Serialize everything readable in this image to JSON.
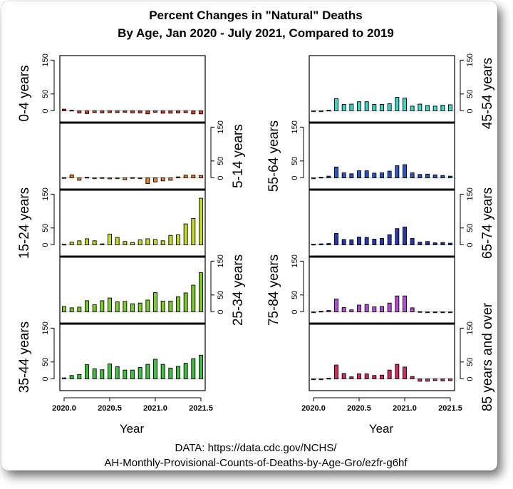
{
  "title_lines": [
    "Percent Changes in \"Natural\" Deaths",
    "By Age, Jan 2020 - July 2021, Compared to 2019"
  ],
  "x_axis_label": "Year",
  "source_lines": [
    "DATA: https://data.cdc.gov/NCHS/",
    "AH-Monthly-Provisional-Counts-of-Deaths-by-Age-Gro/ezfr-g6hf"
  ],
  "chart_data": {
    "type": "bar",
    "layout": "small multiples, two columns",
    "x_tick_labels": [
      "2020.0",
      "2020.5",
      "2021.0",
      "2021.5"
    ],
    "y_tick_labels": [
      "0",
      "50",
      "150"
    ],
    "ylim": [
      -20,
      155
    ],
    "x_note": "19 monthly values, Jan 2020 through July 2021",
    "series": [
      {
        "name": "0-4 years",
        "color": "#e8321a",
        "values": [
          5,
          2,
          -6,
          -8,
          -5,
          -6,
          -5,
          -5,
          -4,
          -6,
          -6,
          -9,
          -4,
          -7,
          -7,
          -6,
          -5,
          -9,
          -9
        ]
      },
      {
        "name": "5-14 years",
        "color": "#f07d1c",
        "values": [
          1,
          9,
          -7,
          2,
          -2,
          1,
          -3,
          -2,
          -5,
          1,
          0,
          -17,
          -12,
          -9,
          -7,
          3,
          8,
          8,
          7
        ]
      },
      {
        "name": "15-24 years",
        "color": "#c8dc20",
        "values": [
          2,
          8,
          12,
          18,
          12,
          3,
          32,
          22,
          10,
          7,
          15,
          18,
          16,
          12,
          28,
          30,
          62,
          78,
          138
        ]
      },
      {
        "name": "25-34 years",
        "color": "#7ccf22",
        "values": [
          16,
          12,
          14,
          33,
          21,
          33,
          41,
          30,
          31,
          24,
          26,
          35,
          57,
          32,
          32,
          45,
          56,
          79,
          116
        ]
      },
      {
        "name": "35-44 years",
        "color": "#3cc23c",
        "values": [
          3,
          10,
          13,
          42,
          30,
          27,
          44,
          36,
          26,
          26,
          34,
          43,
          58,
          43,
          32,
          37,
          46,
          60,
          70
        ]
      },
      {
        "name": "45-54 years",
        "color": "#34d8cc",
        "values": [
          0,
          0,
          2,
          36,
          19,
          20,
          27,
          27,
          19,
          19,
          21,
          40,
          38,
          14,
          20,
          16,
          14,
          17,
          18
        ]
      },
      {
        "name": "55-64 years",
        "color": "#2a56c8",
        "values": [
          0,
          2,
          5,
          32,
          15,
          12,
          21,
          21,
          14,
          15,
          20,
          36,
          39,
          15,
          10,
          11,
          9,
          7,
          5
        ]
      },
      {
        "name": "65-74 years",
        "color": "#2438b4",
        "values": [
          2,
          3,
          4,
          34,
          16,
          15,
          23,
          22,
          17,
          19,
          30,
          48,
          53,
          19,
          8,
          10,
          6,
          7,
          5
        ]
      },
      {
        "name": "75-84 years",
        "color": "#b84ad8",
        "values": [
          0,
          2,
          4,
          38,
          13,
          6,
          20,
          22,
          15,
          16,
          26,
          47,
          47,
          12,
          1,
          -1,
          -2,
          -2,
          -2
        ]
      },
      {
        "name": "85 years and over",
        "color": "#d62a5c",
        "values": [
          0,
          0,
          2,
          41,
          16,
          6,
          15,
          15,
          10,
          11,
          26,
          43,
          35,
          7,
          -7,
          -7,
          -5,
          -6,
          -5
        ]
      }
    ]
  }
}
